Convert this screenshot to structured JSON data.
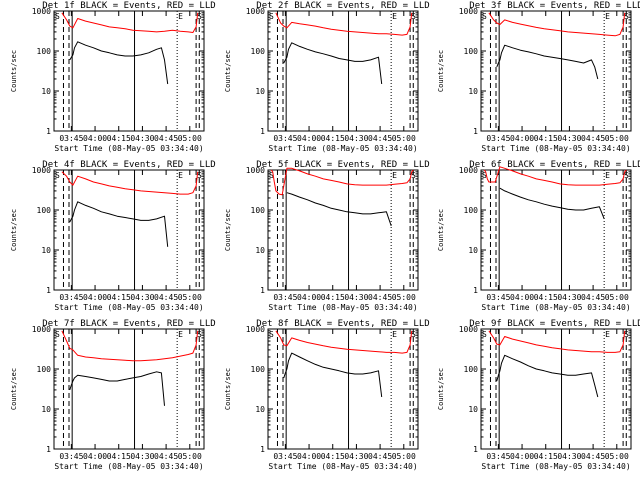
{
  "chart_data": [
    {
      "type": "line",
      "title": "Det 1f BLACK = Events, RED = LLD",
      "xlabel": "Start Time (08-May-05 03:34:40)",
      "ylabel": "Counts/sec",
      "yscale": "log",
      "ylim": [
        1,
        1000
      ],
      "y_ticks": [
        "1",
        "10",
        "100",
        "1000"
      ],
      "x_ticks": [
        "03:45",
        "04:00",
        "04:15",
        "04:30",
        "04:45",
        "05:00"
      ],
      "xlim_minutes": [
        0,
        95
      ],
      "markers": {
        "left": "S",
        "right_e": "E",
        "right_s": "S"
      },
      "series": [
        {
          "name": "LLD",
          "color": "#ff0000",
          "x": [
            5,
            8,
            10,
            12,
            15,
            20,
            25,
            30,
            35,
            40,
            45,
            50,
            55,
            60,
            65,
            70,
            75,
            80,
            85,
            88,
            90,
            91
          ],
          "y": [
            900,
            600,
            420,
            380,
            650,
            560,
            500,
            450,
            400,
            380,
            360,
            330,
            320,
            310,
            300,
            310,
            330,
            310,
            300,
            290,
            400,
            900
          ]
        },
        {
          "name": "Events",
          "color": "#000000",
          "x": [
            10,
            11,
            12,
            13,
            15,
            20,
            25,
            30,
            35,
            40,
            45,
            50,
            55,
            60,
            65,
            68,
            70,
            72
          ],
          "y": [
            60,
            70,
            80,
            120,
            170,
            140,
            120,
            100,
            90,
            80,
            75,
            75,
            80,
            90,
            110,
            120,
            60,
            15
          ]
        }
      ]
    },
    {
      "type": "line",
      "title": "Det 2f BLACK = Events, RED = LLD",
      "xlabel": "Start Time (08-May-05 03:34:40)",
      "ylabel": "Counts/sec",
      "yscale": "log",
      "ylim": [
        1,
        1000
      ],
      "y_ticks": [
        "1",
        "10",
        "100",
        "1000"
      ],
      "x_ticks": [
        "03:45",
        "04:00",
        "04:15",
        "04:30",
        "04:45",
        "05:00"
      ],
      "xlim_minutes": [
        0,
        95
      ],
      "markers": {
        "left": "S",
        "right_e": "E",
        "right_s": "S"
      },
      "series": [
        {
          "name": "LLD",
          "color": "#ff0000",
          "x": [
            5,
            8,
            10,
            12,
            15,
            20,
            25,
            30,
            35,
            40,
            45,
            50,
            55,
            60,
            65,
            70,
            75,
            80,
            85,
            88,
            90,
            91
          ],
          "y": [
            900,
            500,
            420,
            380,
            520,
            480,
            450,
            420,
            380,
            350,
            330,
            310,
            300,
            290,
            280,
            270,
            270,
            260,
            250,
            260,
            400,
            900
          ]
        },
        {
          "name": "Events",
          "color": "#000000",
          "x": [
            10,
            11,
            12,
            13,
            15,
            20,
            25,
            30,
            35,
            40,
            45,
            50,
            55,
            60,
            65,
            70,
            72
          ],
          "y": [
            50,
            60,
            70,
            110,
            160,
            130,
            110,
            95,
            85,
            75,
            65,
            60,
            55,
            55,
            60,
            70,
            15
          ]
        }
      ]
    },
    {
      "type": "line",
      "title": "Det 3f BLACK = Events, RED = LLD",
      "xlabel": "Start Time (08-May-05 03:34:40)",
      "ylabel": "Counts/sec",
      "yscale": "log",
      "ylim": [
        1,
        1000
      ],
      "y_ticks": [
        "1",
        "10",
        "100",
        "1000"
      ],
      "x_ticks": [
        "03:45",
        "04:00",
        "04:15",
        "04:30",
        "04:45",
        "05:00"
      ],
      "xlim_minutes": [
        0,
        95
      ],
      "markers": {
        "left": "S",
        "right_e": "E",
        "right_s": "S"
      },
      "series": [
        {
          "name": "LLD",
          "color": "#ff0000",
          "x": [
            5,
            8,
            10,
            12,
            15,
            20,
            25,
            30,
            35,
            40,
            45,
            50,
            55,
            60,
            65,
            70,
            75,
            80,
            85,
            88,
            90,
            91
          ],
          "y": [
            900,
            600,
            500,
            460,
            600,
            520,
            470,
            430,
            390,
            360,
            340,
            320,
            300,
            290,
            280,
            270,
            260,
            250,
            240,
            260,
            400,
            900
          ]
        },
        {
          "name": "Events",
          "color": "#000000",
          "x": [
            10,
            11,
            12,
            13,
            15,
            20,
            25,
            30,
            35,
            40,
            45,
            50,
            55,
            60,
            65,
            70,
            72,
            74
          ],
          "y": [
            40,
            50,
            60,
            90,
            140,
            120,
            105,
            95,
            85,
            75,
            70,
            65,
            60,
            55,
            50,
            60,
            40,
            20
          ]
        }
      ]
    },
    {
      "type": "line",
      "title": "Det 4f BLACK = Events, RED = LLD",
      "xlabel": "Start Time (08-May-05 03:34:40)",
      "ylabel": "Counts/sec",
      "yscale": "log",
      "ylim": [
        1,
        1000
      ],
      "y_ticks": [
        "1",
        "10",
        "100",
        "1000"
      ],
      "x_ticks": [
        "03:45",
        "04:00",
        "04:15",
        "04:30",
        "04:45",
        "05:00"
      ],
      "xlim_minutes": [
        0,
        95
      ],
      "markers": {
        "left": "S",
        "right_e": "E",
        "right_s": "S"
      },
      "series": [
        {
          "name": "LLD",
          "color": "#ff0000",
          "x": [
            5,
            8,
            10,
            12,
            15,
            20,
            25,
            30,
            35,
            40,
            45,
            50,
            55,
            60,
            65,
            70,
            75,
            80,
            85,
            88,
            90,
            91
          ],
          "y": [
            900,
            700,
            500,
            420,
            700,
            600,
            500,
            450,
            400,
            370,
            340,
            320,
            300,
            290,
            280,
            270,
            260,
            250,
            250,
            270,
            400,
            900
          ]
        },
        {
          "name": "Events",
          "color": "#000000",
          "x": [
            10,
            11,
            12,
            13,
            15,
            20,
            25,
            30,
            35,
            40,
            45,
            50,
            55,
            60,
            65,
            70,
            72
          ],
          "y": [
            50,
            60,
            70,
            100,
            160,
            130,
            110,
            90,
            80,
            70,
            65,
            60,
            55,
            55,
            60,
            70,
            12
          ]
        }
      ]
    },
    {
      "type": "line",
      "title": "Det 5f BLACK = Events, RED = LLD",
      "xlabel": "Start Time (08-May-05 03:34:40)",
      "ylabel": "Counts/sec",
      "yscale": "log",
      "ylim": [
        1,
        1000
      ],
      "y_ticks": [
        "1",
        "10",
        "100",
        "1000"
      ],
      "x_ticks": [
        "03:45",
        "04:00",
        "04:15",
        "04:30",
        "04:45",
        "05:00"
      ],
      "xlim_minutes": [
        0,
        95
      ],
      "markers": {
        "left": "S",
        "right_e": "E",
        "right_s": "S"
      },
      "series": [
        {
          "name": "LLD",
          "color": "#ff0000",
          "x": [
            2,
            3,
            4,
            5,
            7,
            9,
            12,
            15,
            20,
            25,
            30,
            35,
            40,
            45,
            50,
            55,
            60,
            65,
            70,
            75,
            80,
            85,
            88,
            90,
            91,
            92
          ],
          "y": [
            1000,
            900,
            500,
            300,
            250,
            240,
            1100,
            1100,
            950,
            800,
            700,
            600,
            550,
            500,
            450,
            430,
            420,
            420,
            420,
            420,
            440,
            460,
            480,
            600,
            900,
            1000
          ]
        },
        {
          "name": "Events",
          "color": "#000000",
          "x": [
            12,
            15,
            20,
            25,
            30,
            35,
            40,
            45,
            50,
            55,
            60,
            65,
            70,
            75,
            78
          ],
          "y": [
            270,
            250,
            210,
            180,
            150,
            130,
            110,
            100,
            90,
            85,
            80,
            80,
            85,
            90,
            40
          ]
        }
      ]
    },
    {
      "type": "line",
      "title": "Det 6f BLACK = Events, RED = LLD",
      "xlabel": "Start Time (08-May-05 03:34:40)",
      "ylabel": "Counts/sec",
      "yscale": "log",
      "ylim": [
        1,
        1000
      ],
      "y_ticks": [
        "1",
        "10",
        "100",
        "1000"
      ],
      "x_ticks": [
        "03:45",
        "04:00",
        "04:15",
        "04:30",
        "04:45",
        "05:00"
      ],
      "xlim_minutes": [
        0,
        95
      ],
      "markers": {
        "left": "S",
        "right_e": "E",
        "right_s": "S"
      },
      "series": [
        {
          "name": "LLD",
          "color": "#ff0000",
          "x": [
            2,
            3,
            4,
            5,
            7,
            9,
            12,
            15,
            20,
            25,
            30,
            35,
            40,
            45,
            50,
            55,
            60,
            65,
            70,
            75,
            80,
            85,
            88,
            90,
            91,
            92
          ],
          "y": [
            1000,
            900,
            600,
            500,
            500,
            500,
            1200,
            1100,
            950,
            800,
            700,
            600,
            550,
            500,
            450,
            430,
            420,
            420,
            420,
            420,
            440,
            460,
            480,
            600,
            900,
            1000
          ]
        },
        {
          "name": "Events",
          "color": "#000000",
          "x": [
            12,
            15,
            20,
            25,
            30,
            35,
            40,
            45,
            50,
            55,
            60,
            65,
            70,
            75,
            78
          ],
          "y": [
            350,
            300,
            250,
            210,
            180,
            160,
            140,
            125,
            115,
            105,
            100,
            100,
            110,
            120,
            60
          ]
        }
      ]
    },
    {
      "type": "line",
      "title": "Det 7f BLACK = Events, RED = LLD",
      "xlabel": "Start Time (08-May-05 03:34:40)",
      "ylabel": "Counts/sec",
      "yscale": "log",
      "ylim": [
        1,
        1000
      ],
      "y_ticks": [
        "1",
        "10",
        "100",
        "1000"
      ],
      "x_ticks": [
        "03:45",
        "04:00",
        "04:15",
        "04:30",
        "04:45",
        "05:00"
      ],
      "xlim_minutes": [
        0,
        95
      ],
      "markers": {
        "left": "S",
        "right_e": "E",
        "right_s": "S"
      },
      "series": [
        {
          "name": "LLD",
          "color": "#ff0000",
          "x": [
            5,
            8,
            10,
            12,
            15,
            20,
            25,
            30,
            35,
            40,
            45,
            50,
            55,
            60,
            65,
            70,
            75,
            80,
            85,
            88,
            90,
            91
          ],
          "y": [
            900,
            500,
            330,
            300,
            220,
            200,
            190,
            180,
            175,
            170,
            165,
            160,
            160,
            165,
            170,
            180,
            190,
            210,
            230,
            250,
            400,
            900
          ]
        },
        {
          "name": "Events",
          "color": "#000000",
          "x": [
            10,
            11,
            12,
            13,
            15,
            20,
            25,
            30,
            35,
            40,
            45,
            50,
            55,
            60,
            65,
            68,
            70
          ],
          "y": [
            30,
            40,
            50,
            60,
            70,
            65,
            60,
            55,
            50,
            50,
            55,
            60,
            65,
            75,
            85,
            80,
            12
          ]
        }
      ]
    },
    {
      "type": "line",
      "title": "Det 8f BLACK = Events, RED = LLD",
      "xlabel": "Start Time (08-May-05 03:34:40)",
      "ylabel": "Counts/sec",
      "yscale": "log",
      "ylim": [
        1,
        1000
      ],
      "y_ticks": [
        "1",
        "10",
        "100",
        "1000"
      ],
      "x_ticks": [
        "03:45",
        "04:00",
        "04:15",
        "04:30",
        "04:45",
        "05:00"
      ],
      "xlim_minutes": [
        0,
        95
      ],
      "markers": {
        "left": "S",
        "right_e": "E",
        "right_s": "S"
      },
      "series": [
        {
          "name": "LLD",
          "color": "#ff0000",
          "x": [
            5,
            8,
            10,
            12,
            15,
            20,
            25,
            30,
            35,
            40,
            45,
            50,
            55,
            60,
            65,
            70,
            75,
            80,
            85,
            88,
            90,
            91
          ],
          "y": [
            900,
            600,
            400,
            380,
            600,
            520,
            460,
            420,
            380,
            350,
            330,
            310,
            300,
            290,
            280,
            270,
            260,
            260,
            250,
            260,
            400,
            900
          ]
        },
        {
          "name": "Events",
          "color": "#000000",
          "x": [
            10,
            11,
            12,
            13,
            15,
            20,
            25,
            30,
            35,
            40,
            45,
            50,
            55,
            60,
            65,
            70,
            72
          ],
          "y": [
            60,
            80,
            100,
            160,
            250,
            200,
            160,
            130,
            110,
            100,
            90,
            80,
            75,
            75,
            80,
            90,
            20
          ]
        }
      ]
    },
    {
      "type": "line",
      "title": "Det 9f BLACK = Events, RED = LLD",
      "xlabel": "Start Time (08-May-05 03:34:40)",
      "ylabel": "Counts/sec",
      "yscale": "log",
      "ylim": [
        1,
        1000
      ],
      "y_ticks": [
        "1",
        "10",
        "100",
        "1000"
      ],
      "x_ticks": [
        "03:45",
        "04:00",
        "04:15",
        "04:30",
        "04:45",
        "05:00"
      ],
      "xlim_minutes": [
        0,
        95
      ],
      "markers": {
        "left": "S",
        "right_e": "E",
        "right_s": "S"
      },
      "series": [
        {
          "name": "LLD",
          "color": "#ff0000",
          "x": [
            5,
            8,
            10,
            12,
            15,
            20,
            25,
            30,
            35,
            40,
            45,
            50,
            55,
            60,
            65,
            70,
            75,
            80,
            85,
            88,
            90,
            91
          ],
          "y": [
            900,
            600,
            420,
            400,
            650,
            560,
            500,
            450,
            400,
            370,
            340,
            320,
            300,
            290,
            280,
            270,
            270,
            260,
            260,
            270,
            400,
            900
          ]
        },
        {
          "name": "Events",
          "color": "#000000",
          "x": [
            10,
            11,
            12,
            13,
            15,
            20,
            25,
            30,
            35,
            40,
            45,
            50,
            55,
            60,
            65,
            70,
            72,
            74
          ],
          "y": [
            50,
            70,
            90,
            140,
            220,
            180,
            150,
            120,
            100,
            90,
            80,
            75,
            70,
            70,
            75,
            80,
            40,
            20
          ]
        }
      ]
    }
  ]
}
